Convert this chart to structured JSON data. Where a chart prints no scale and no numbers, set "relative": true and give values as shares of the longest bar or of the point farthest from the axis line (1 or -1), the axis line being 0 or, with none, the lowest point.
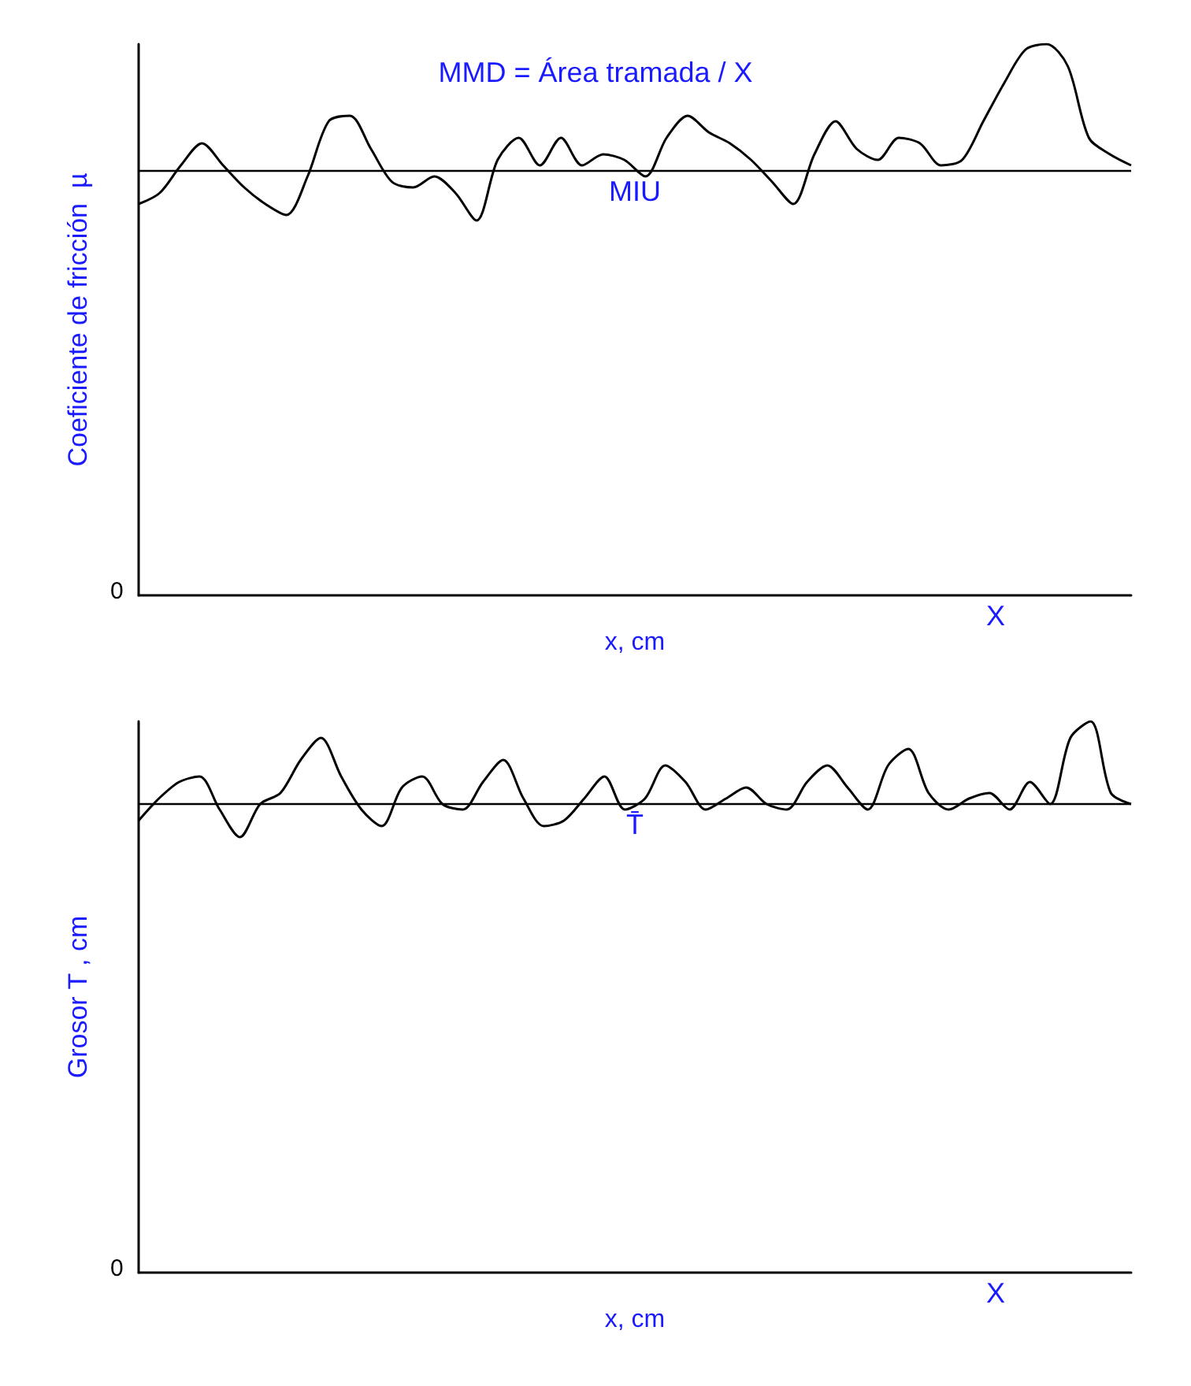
{
  "chart_data": [
    {
      "type": "line",
      "title": "MMD = Área tramada / X",
      "xlabel": "x, cm",
      "ylabel": "Coeficiente de fricción  µ",
      "relative": true,
      "categories": [
        null,
        null,
        null,
        null,
        null,
        null,
        null,
        null,
        null,
        null,
        null,
        null,
        null,
        null,
        null,
        null,
        null,
        null,
        null,
        null,
        null,
        null,
        null,
        null,
        null,
        null,
        null,
        null,
        null,
        null,
        null,
        null,
        null,
        null,
        null,
        null,
        null,
        null,
        null,
        null,
        null,
        null,
        null,
        null,
        null,
        null,
        null,
        null
      ],
      "series": [
        {
          "color": "#000000",
          "values": [
            0.71,
            0.73,
            0.78,
            0.82,
            0.78,
            0.74,
            0.71,
            0.69,
            0.76,
            0.86,
            0.87,
            0.81,
            0.75,
            0.74,
            0.76,
            0.73,
            0.68,
            0.79,
            0.83,
            0.78,
            0.83,
            0.78,
            0.8,
            0.79,
            0.76,
            0.83,
            0.87,
            0.84,
            0.82,
            0.79,
            0.75,
            0.71,
            0.8,
            0.86,
            0.81,
            0.79,
            0.83,
            0.82,
            0.78,
            0.79,
            0.86,
            0.93,
            0.99,
            1,
            0.96,
            0.83,
            0.8,
            0.78
          ]
        }
      ],
      "ref_lines": [
        {
          "axis": "y",
          "value": 0.77,
          "label": "MIU",
          "color": "#000000"
        }
      ],
      "annotations": [
        "0",
        "X"
      ]
    },
    {
      "type": "line",
      "xlabel": "x, cm",
      "ylabel": "Grosor T , cm",
      "relative": true,
      "categories": [
        null,
        null,
        null,
        null,
        null,
        null,
        null,
        null,
        null,
        null,
        null,
        null,
        null,
        null,
        null,
        null,
        null,
        null,
        null,
        null,
        null,
        null,
        null,
        null,
        null,
        null,
        null,
        null,
        null,
        null,
        null,
        null,
        null,
        null,
        null,
        null,
        null,
        null,
        null,
        null,
        null,
        null,
        null,
        null,
        null,
        null,
        null,
        null,
        null,
        null
      ],
      "series": [
        {
          "color": "#000000",
          "values": [
            0.82,
            0.86,
            0.89,
            0.9,
            0.84,
            0.79,
            0.85,
            0.87,
            0.93,
            0.97,
            0.9,
            0.84,
            0.81,
            0.88,
            0.9,
            0.85,
            0.84,
            0.89,
            0.93,
            0.86,
            0.81,
            0.82,
            0.86,
            0.9,
            0.84,
            0.86,
            0.92,
            0.89,
            0.84,
            0.86,
            0.88,
            0.85,
            0.84,
            0.89,
            0.92,
            0.88,
            0.84,
            0.92,
            0.95,
            0.87,
            0.84,
            0.86,
            0.87,
            0.84,
            0.89,
            0.85,
            0.97,
            1,
            0.87,
            0.85
          ]
        }
      ],
      "ref_lines": [
        {
          "axis": "y",
          "value": 0.85,
          "label": "T̄",
          "color": "#000000"
        }
      ],
      "annotations": [
        "0",
        "X"
      ]
    }
  ]
}
